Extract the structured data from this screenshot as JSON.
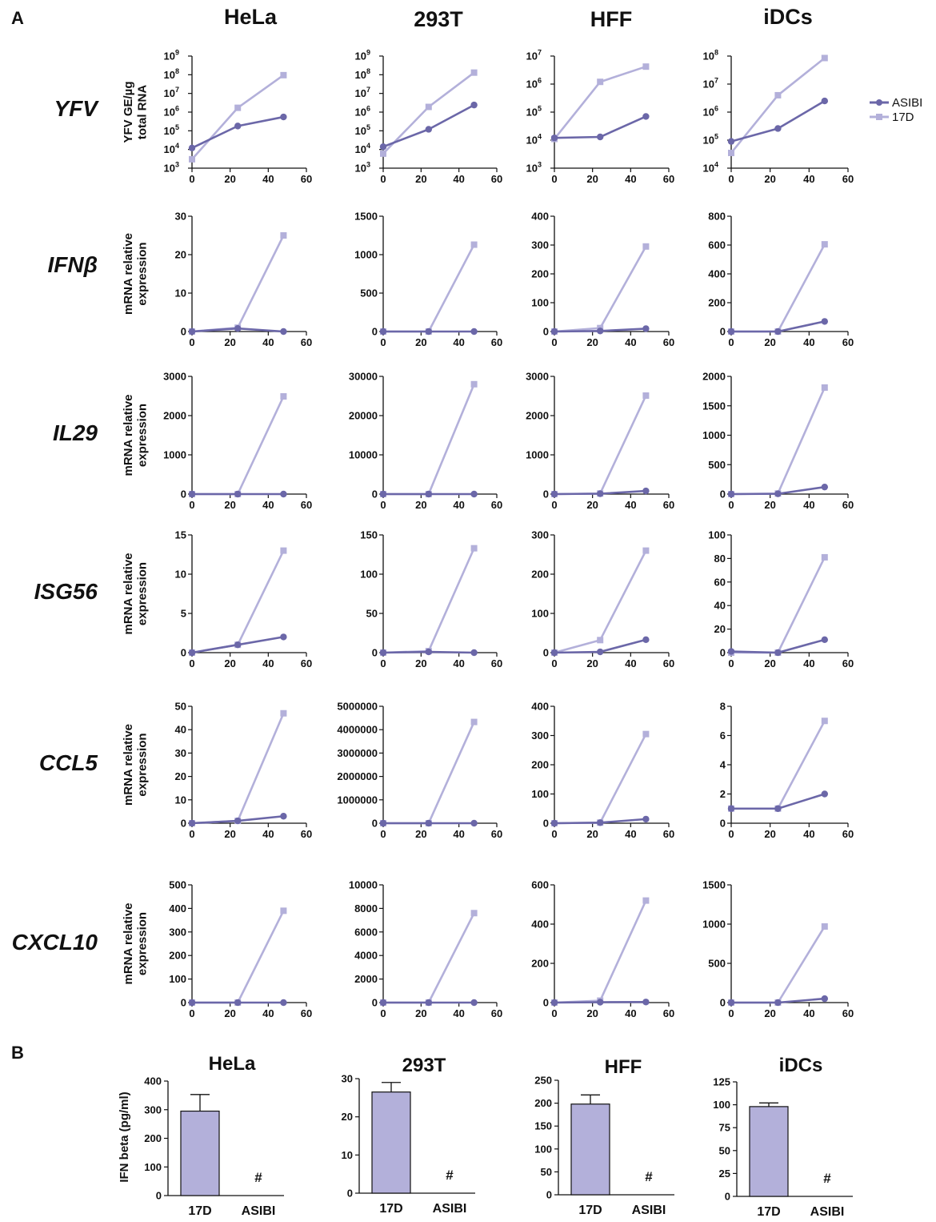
{
  "panel_labels": {
    "a": "A",
    "b": "B"
  },
  "columns": [
    "HeLa",
    "293T",
    "HFF",
    "iDCs"
  ],
  "rows": [
    {
      "gene": "YFV",
      "ylabel_lines": [
        "YFV GE/µg",
        "total RNA"
      ]
    },
    {
      "gene": "IFNβ",
      "ylabel_lines": [
        "mRNA relative",
        "expression"
      ]
    },
    {
      "gene": "IL29",
      "ylabel_lines": [
        "mRNA relative",
        "expression"
      ]
    },
    {
      "gene": "ISG56",
      "ylabel_lines": [
        "mRNA relative",
        "expression"
      ]
    },
    {
      "gene": "CCL5",
      "ylabel_lines": [
        "mRNA relative",
        "expression"
      ]
    },
    {
      "gene": "CXCL10",
      "ylabel_lines": [
        "mRNA relative",
        "expression"
      ]
    }
  ],
  "legend": [
    {
      "name": "ASIBI",
      "color": "#6b67a8",
      "marker": "circle"
    },
    {
      "name": "17D",
      "color": "#b3b0da",
      "marker": "square"
    }
  ],
  "b_ylabel": "IFN beta (pg/ml)",
  "chart_data": [
    {
      "type": "line",
      "row": "YFV",
      "title": "HeLa",
      "yscale": "log",
      "x": [
        0,
        24,
        48
      ],
      "xticks": [
        0,
        20,
        40,
        60
      ],
      "yexp_ticks": [
        3,
        4,
        5,
        6,
        7,
        8,
        9
      ],
      "series": [
        {
          "name": "ASIBI",
          "values": [
            12000,
            180000,
            550000
          ]
        },
        {
          "name": "17D",
          "values": [
            3000,
            1700000,
            95000000
          ]
        }
      ]
    },
    {
      "type": "line",
      "row": "YFV",
      "title": "293T",
      "yscale": "log",
      "x": [
        0,
        24,
        48
      ],
      "xticks": [
        0,
        20,
        40,
        60
      ],
      "yexp_ticks": [
        3,
        4,
        5,
        6,
        7,
        8,
        9
      ],
      "series": [
        {
          "name": "ASIBI",
          "values": [
            14000,
            120000,
            2400000
          ]
        },
        {
          "name": "17D",
          "values": [
            6000,
            1900000,
            130000000
          ]
        }
      ]
    },
    {
      "type": "line",
      "row": "YFV",
      "title": "HFF",
      "yscale": "log",
      "x": [
        0,
        24,
        48
      ],
      "xticks": [
        0,
        20,
        40,
        60
      ],
      "yexp_ticks": [
        3,
        4,
        5,
        6,
        7
      ],
      "series": [
        {
          "name": "ASIBI",
          "values": [
            12000,
            13000,
            70000
          ]
        },
        {
          "name": "17D",
          "values": [
            11000,
            1200000,
            4200000
          ]
        }
      ]
    },
    {
      "type": "line",
      "row": "YFV",
      "title": "iDCs",
      "yscale": "log",
      "x": [
        0,
        24,
        48
      ],
      "xticks": [
        0,
        20,
        40,
        60
      ],
      "yexp_ticks": [
        4,
        5,
        6,
        7,
        8
      ],
      "series": [
        {
          "name": "ASIBI",
          "values": [
            90000,
            260000,
            2500000
          ]
        },
        {
          "name": "17D",
          "values": [
            35000,
            4000000,
            85000000
          ]
        }
      ]
    },
    {
      "type": "line",
      "row": "IFNβ",
      "title": "HeLa",
      "x": [
        0,
        24,
        48
      ],
      "xticks": [
        0,
        20,
        40,
        60
      ],
      "yticks": [
        0,
        10,
        20,
        30
      ],
      "ytick_labels": [
        "0",
        "10",
        "20",
        "30"
      ],
      "series": [
        {
          "name": "ASIBI",
          "values": [
            0,
            0.8,
            0
          ]
        },
        {
          "name": "17D",
          "values": [
            0,
            1,
            25
          ]
        }
      ]
    },
    {
      "type": "line",
      "row": "IFNβ",
      "title": "293T",
      "x": [
        0,
        24,
        48
      ],
      "xticks": [
        0,
        20,
        40,
        60
      ],
      "yticks": [
        0,
        500,
        1000,
        1500
      ],
      "ytick_labels": [
        "0",
        "500",
        "1000",
        "1500"
      ],
      "series": [
        {
          "name": "ASIBI",
          "values": [
            0,
            0,
            0
          ]
        },
        {
          "name": "17D",
          "values": [
            0,
            0,
            1130
          ]
        }
      ]
    },
    {
      "type": "line",
      "row": "IFNβ",
      "title": "HFF",
      "x": [
        0,
        24,
        48
      ],
      "xticks": [
        0,
        20,
        40,
        60
      ],
      "yticks": [
        0,
        100,
        200,
        300,
        400
      ],
      "ytick_labels": [
        "0",
        "100",
        "200",
        "300",
        "400"
      ],
      "series": [
        {
          "name": "ASIBI",
          "values": [
            0,
            2,
            10
          ]
        },
        {
          "name": "17D",
          "values": [
            0,
            12,
            295
          ]
        }
      ]
    },
    {
      "type": "line",
      "row": "IFNβ",
      "title": "iDCs",
      "x": [
        0,
        24,
        48
      ],
      "xticks": [
        0,
        20,
        40,
        60
      ],
      "yticks": [
        0,
        200,
        400,
        600,
        800
      ],
      "ytick_labels": [
        "0",
        "200",
        "400",
        "600",
        "800"
      ],
      "series": [
        {
          "name": "ASIBI",
          "values": [
            0,
            0,
            70
          ]
        },
        {
          "name": "17D",
          "values": [
            0,
            0,
            605
          ]
        }
      ]
    },
    {
      "type": "line",
      "row": "IL29",
      "title": "HeLa",
      "x": [
        0,
        24,
        48
      ],
      "xticks": [
        0,
        20,
        40,
        60
      ],
      "yticks": [
        0,
        1000,
        2000,
        3000
      ],
      "ytick_labels": [
        "0",
        "1000",
        "2000",
        "3000"
      ],
      "series": [
        {
          "name": "ASIBI",
          "values": [
            0,
            0,
            0
          ]
        },
        {
          "name": "17D",
          "values": [
            0,
            0,
            2490
          ]
        }
      ]
    },
    {
      "type": "line",
      "row": "IL29",
      "title": "293T",
      "x": [
        0,
        24,
        48
      ],
      "xticks": [
        0,
        20,
        40,
        60
      ],
      "yticks": [
        0,
        10000,
        20000,
        30000
      ],
      "ytick_labels": [
        "0",
        "10000",
        "20000",
        "30000"
      ],
      "series": [
        {
          "name": "ASIBI",
          "values": [
            0,
            0,
            0
          ]
        },
        {
          "name": "17D",
          "values": [
            0,
            0,
            28000
          ]
        }
      ]
    },
    {
      "type": "line",
      "row": "IL29",
      "title": "HFF",
      "x": [
        0,
        24,
        48
      ],
      "xticks": [
        0,
        20,
        40,
        60
      ],
      "yticks": [
        0,
        1000,
        2000,
        3000
      ],
      "ytick_labels": [
        "0",
        "1000",
        "2000",
        "3000"
      ],
      "series": [
        {
          "name": "ASIBI",
          "values": [
            0,
            10,
            80
          ]
        },
        {
          "name": "17D",
          "values": [
            0,
            15,
            2510
          ]
        }
      ]
    },
    {
      "type": "line",
      "row": "IL29",
      "title": "iDCs",
      "x": [
        0,
        24,
        48
      ],
      "xticks": [
        0,
        20,
        40,
        60
      ],
      "yticks": [
        0,
        500,
        1000,
        1500,
        2000
      ],
      "ytick_labels": [
        "0",
        "500",
        "1000",
        "1500",
        "2000"
      ],
      "series": [
        {
          "name": "ASIBI",
          "values": [
            0,
            5,
            120
          ]
        },
        {
          "name": "17D",
          "values": [
            0,
            10,
            1810
          ]
        }
      ]
    },
    {
      "type": "line",
      "row": "ISG56",
      "title": "HeLa",
      "x": [
        0,
        24,
        48
      ],
      "xticks": [
        0,
        20,
        40,
        60
      ],
      "yticks": [
        0,
        5,
        10,
        15
      ],
      "ytick_labels": [
        "0",
        "5",
        "10",
        "15"
      ],
      "series": [
        {
          "name": "ASIBI",
          "values": [
            0,
            1,
            2
          ]
        },
        {
          "name": "17D",
          "values": [
            0,
            1,
            13
          ]
        }
      ]
    },
    {
      "type": "line",
      "row": "ISG56",
      "title": "293T",
      "x": [
        0,
        24,
        48
      ],
      "xticks": [
        0,
        20,
        40,
        60
      ],
      "yticks": [
        0,
        50,
        100,
        150
      ],
      "ytick_labels": [
        "0",
        "50",
        "100",
        "150"
      ],
      "series": [
        {
          "name": "ASIBI",
          "values": [
            0,
            1,
            0
          ]
        },
        {
          "name": "17D",
          "values": [
            0,
            2,
            133
          ]
        }
      ]
    },
    {
      "type": "line",
      "row": "ISG56",
      "title": "HFF",
      "x": [
        0,
        24,
        48
      ],
      "xticks": [
        0,
        20,
        40,
        60
      ],
      "yticks": [
        0,
        100,
        200,
        300
      ],
      "ytick_labels": [
        "0",
        "100",
        "200",
        "300"
      ],
      "series": [
        {
          "name": "ASIBI",
          "values": [
            0,
            2,
            33
          ]
        },
        {
          "name": "17D",
          "values": [
            0,
            32,
            260
          ]
        }
      ]
    },
    {
      "type": "line",
      "row": "ISG56",
      "title": "iDCs",
      "x": [
        0,
        24,
        48
      ],
      "xticks": [
        0,
        20,
        40,
        60
      ],
      "yticks": [
        0,
        20,
        40,
        60,
        80,
        100
      ],
      "ytick_labels": [
        "0",
        "20",
        "40",
        "60",
        "80",
        "100"
      ],
      "series": [
        {
          "name": "ASIBI",
          "values": [
            1,
            0,
            11
          ]
        },
        {
          "name": "17D",
          "values": [
            0,
            0,
            81
          ]
        }
      ]
    },
    {
      "type": "line",
      "row": "CCL5",
      "title": "HeLa",
      "x": [
        0,
        24,
        48
      ],
      "xticks": [
        0,
        20,
        40,
        60
      ],
      "yticks": [
        0,
        10,
        20,
        30,
        40,
        50
      ],
      "ytick_labels": [
        "0",
        "10",
        "20",
        "30",
        "40",
        "50"
      ],
      "series": [
        {
          "name": "ASIBI",
          "values": [
            0,
            1,
            3
          ]
        },
        {
          "name": "17D",
          "values": [
            0,
            1,
            47
          ]
        }
      ]
    },
    {
      "type": "line",
      "row": "CCL5",
      "title": "293T",
      "x": [
        0,
        24,
        48
      ],
      "xticks": [
        0,
        20,
        40,
        60
      ],
      "yticks": [
        0,
        1000000,
        2000000,
        3000000,
        4000000,
        5000000
      ],
      "ytick_labels": [
        "0",
        "1000000",
        "2000000",
        "3000000",
        "4000000",
        "5000000"
      ],
      "series": [
        {
          "name": "ASIBI",
          "values": [
            0,
            0,
            0
          ]
        },
        {
          "name": "17D",
          "values": [
            0,
            0,
            4330000
          ]
        }
      ]
    },
    {
      "type": "line",
      "row": "CCL5",
      "title": "HFF",
      "x": [
        0,
        24,
        48
      ],
      "xticks": [
        0,
        20,
        40,
        60
      ],
      "yticks": [
        0,
        100,
        200,
        300,
        400
      ],
      "ytick_labels": [
        "0",
        "100",
        "200",
        "300",
        "400"
      ],
      "series": [
        {
          "name": "ASIBI",
          "values": [
            0,
            2,
            14
          ]
        },
        {
          "name": "17D",
          "values": [
            0,
            2,
            305
          ]
        }
      ]
    },
    {
      "type": "line",
      "row": "CCL5",
      "title": "iDCs",
      "x": [
        0,
        24,
        48
      ],
      "xticks": [
        0,
        20,
        40,
        60
      ],
      "yticks": [
        0,
        2,
        4,
        6,
        8
      ],
      "ytick_labels": [
        "0",
        "2",
        "4",
        "6",
        "8"
      ],
      "series": [
        {
          "name": "ASIBI",
          "values": [
            1,
            1,
            2
          ]
        },
        {
          "name": "17D",
          "values": [
            1,
            1,
            7
          ]
        }
      ]
    },
    {
      "type": "line",
      "row": "CXCL10",
      "title": "HeLa",
      "x": [
        0,
        24,
        48
      ],
      "xticks": [
        0,
        20,
        40,
        60
      ],
      "yticks": [
        0,
        100,
        200,
        300,
        400,
        500
      ],
      "ytick_labels": [
        "0",
        "100",
        "200",
        "300",
        "400",
        "500"
      ],
      "series": [
        {
          "name": "ASIBI",
          "values": [
            0,
            0,
            0
          ]
        },
        {
          "name": "17D",
          "values": [
            0,
            0,
            390
          ]
        }
      ]
    },
    {
      "type": "line",
      "row": "CXCL10",
      "title": "293T",
      "x": [
        0,
        24,
        48
      ],
      "xticks": [
        0,
        20,
        40,
        60
      ],
      "yticks": [
        0,
        2000,
        4000,
        6000,
        8000,
        10000
      ],
      "ytick_labels": [
        "0",
        "2000",
        "4000",
        "6000",
        "8000",
        "10000"
      ],
      "series": [
        {
          "name": "ASIBI",
          "values": [
            0,
            0,
            0
          ]
        },
        {
          "name": "17D",
          "values": [
            0,
            0,
            7600
          ]
        }
      ]
    },
    {
      "type": "line",
      "row": "CXCL10",
      "title": "HFF",
      "x": [
        0,
        24,
        48
      ],
      "xticks": [
        0,
        20,
        40,
        60
      ],
      "yticks": [
        0,
        200,
        400,
        600
      ],
      "ytick_labels": [
        "0",
        "200",
        "400",
        "600"
      ],
      "series": [
        {
          "name": "ASIBI",
          "values": [
            0,
            2,
            3
          ]
        },
        {
          "name": "17D",
          "values": [
            0,
            10,
            520
          ]
        }
      ]
    },
    {
      "type": "line",
      "row": "CXCL10",
      "title": "iDCs",
      "x": [
        0,
        24,
        48
      ],
      "xticks": [
        0,
        20,
        40,
        60
      ],
      "yticks": [
        0,
        500,
        1000,
        1500
      ],
      "ytick_labels": [
        "0",
        "500",
        "1000",
        "1500"
      ],
      "series": [
        {
          "name": "ASIBI",
          "values": [
            0,
            0,
            50
          ]
        },
        {
          "name": "17D",
          "values": [
            0,
            0,
            970
          ]
        }
      ]
    },
    {
      "type": "bar",
      "panel": "B",
      "title": "HeLa",
      "categories": [
        "17D",
        "ASIBI"
      ],
      "values": [
        295,
        null
      ],
      "errors": [
        58,
        null
      ],
      "annotations": [
        "",
        "#"
      ],
      "yticks": [
        0,
        100,
        200,
        300,
        400
      ],
      "ytick_labels": [
        "0",
        "100",
        "200",
        "300",
        "400"
      ]
    },
    {
      "type": "bar",
      "panel": "B",
      "title": "293T",
      "categories": [
        "17D",
        "ASIBI"
      ],
      "values": [
        26.5,
        null
      ],
      "errors": [
        2.5,
        null
      ],
      "annotations": [
        "",
        "#"
      ],
      "yticks": [
        0,
        10,
        20,
        30
      ],
      "ytick_labels": [
        "0",
        "10",
        "20",
        "30"
      ]
    },
    {
      "type": "bar",
      "panel": "B",
      "title": "HFF",
      "categories": [
        "17D",
        "ASIBI"
      ],
      "values": [
        198,
        null
      ],
      "errors": [
        20,
        null
      ],
      "annotations": [
        "",
        "#"
      ],
      "yticks": [
        0,
        50,
        100,
        150,
        200,
        250
      ],
      "ytick_labels": [
        "0",
        "50",
        "100",
        "150",
        "200",
        "250"
      ]
    },
    {
      "type": "bar",
      "panel": "B",
      "title": "iDCs",
      "categories": [
        "17D",
        "ASIBI"
      ],
      "values": [
        98,
        null
      ],
      "errors": [
        4,
        null
      ],
      "annotations": [
        "",
        "#"
      ],
      "yticks": [
        0,
        25,
        50,
        75,
        100,
        125
      ],
      "ytick_labels": [
        "0",
        "25",
        "50",
        "75",
        "100",
        "125"
      ]
    }
  ]
}
